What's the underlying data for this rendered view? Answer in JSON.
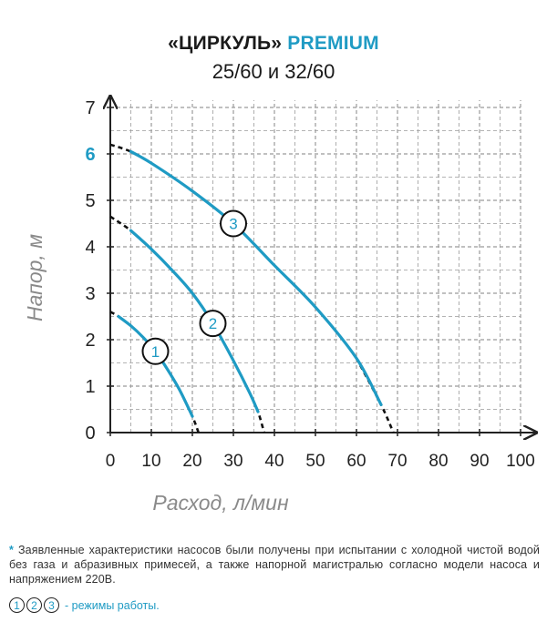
{
  "title": {
    "brand": "«ЦИРКУЛЬ»",
    "premium": "PREMIUM",
    "models": "25/60 и 32/60"
  },
  "colors": {
    "curve": "#1f9bc4",
    "accent_tick": "#1f9bc4",
    "grid": "#9a9a9a",
    "axis": "#222222",
    "axis_label": "#8a8a8a"
  },
  "chart_data": {
    "type": "line",
    "xlabel": "Расход, л/мин",
    "ylabel": "Напор, м",
    "xlim": [
      0,
      100
    ],
    "ylim": [
      0,
      7
    ],
    "x_ticks": [
      "0",
      "10",
      "20",
      "30",
      "40",
      "50",
      "60",
      "70",
      "80",
      "90",
      "100"
    ],
    "y_ticks": [
      "0",
      "1",
      "2",
      "3",
      "4",
      "5",
      "6",
      "7"
    ],
    "highlighted_y_tick": "6",
    "grid": true,
    "series": [
      {
        "name": "1",
        "x": [
          0,
          2,
          5,
          8,
          11,
          14,
          17,
          20,
          21.5
        ],
        "y": [
          2.6,
          2.5,
          2.3,
          2.05,
          1.75,
          1.35,
          0.9,
          0.35,
          0
        ]
      },
      {
        "name": "2",
        "x": [
          0,
          5,
          10,
          15,
          20,
          25,
          30,
          34,
          36,
          37.5
        ],
        "y": [
          4.65,
          4.35,
          3.95,
          3.5,
          3.0,
          2.35,
          1.55,
          0.85,
          0.45,
          0
        ]
      },
      {
        "name": "3",
        "x": [
          0,
          5,
          10,
          20,
          30,
          40,
          50,
          60,
          66,
          69
        ],
        "y": [
          6.2,
          6.05,
          5.8,
          5.2,
          4.5,
          3.6,
          2.7,
          1.6,
          0.6,
          0
        ]
      }
    ],
    "curve_labels": [
      "1",
      "2",
      "3"
    ]
  },
  "footnote": {
    "star": "*",
    "text": "Заявленные характеристики насосов были получены при испытании с холодной чистой водой без газа и абразивных примесей, а также напорной магистралью согласно модели насоса и напряжением 220В."
  },
  "legend": {
    "modes": [
      "1",
      "2",
      "3"
    ],
    "text": "- режимы работы."
  }
}
